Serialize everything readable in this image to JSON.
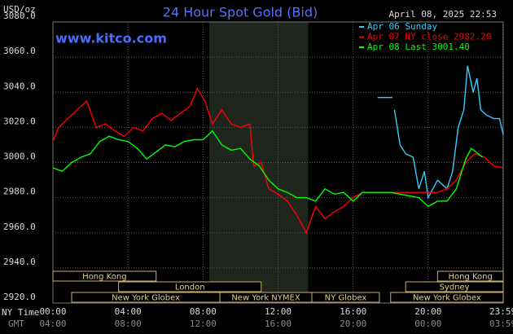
{
  "chart_data": {
    "type": "line",
    "title": "24 Hour Spot Gold (Bid)",
    "watermark": "www.kitco.com",
    "timestamp": "April 08, 2025 22:53",
    "y_label": "USD/oz",
    "x_label": "NY Time",
    "x2_label": "GMT",
    "xlim": [
      0,
      24
    ],
    "ylim": [
      2920,
      3080
    ],
    "yticks": [
      {
        "value": 2920,
        "label": "2920.0"
      },
      {
        "value": 2940,
        "label": "2940.0"
      },
      {
        "value": 2960,
        "label": "2960.0"
      },
      {
        "value": 2980,
        "label": "2980.0"
      },
      {
        "value": 3000,
        "label": "3000.0"
      },
      {
        "value": 3020,
        "label": "3020.0"
      },
      {
        "value": 3040,
        "label": "3040.0"
      },
      {
        "value": 3060,
        "label": "3060.0"
      },
      {
        "value": 3080,
        "label": "3080.0"
      }
    ],
    "xticks": [
      {
        "value": 0,
        "label": "00:00"
      },
      {
        "value": 4,
        "label": "04:00"
      },
      {
        "value": 8,
        "label": "08:00"
      },
      {
        "value": 12,
        "label": "12:00"
      },
      {
        "value": 16,
        "label": "16:00"
      },
      {
        "value": 20,
        "label": "20:00"
      },
      {
        "value": 23.98,
        "label": "23:59"
      }
    ],
    "x2ticks": [
      {
        "value": 0,
        "label": "04:00"
      },
      {
        "value": 4,
        "label": "08:00"
      },
      {
        "value": 8,
        "label": "12:00"
      },
      {
        "value": 12,
        "label": "16:00"
      },
      {
        "value": 16,
        "label": "20:00"
      },
      {
        "value": 20,
        "label": "00:00"
      },
      {
        "value": 23.98,
        "label": "03:59"
      }
    ],
    "grid": true,
    "highlight_x": [
      8.33,
      13.6
    ],
    "sessions": [
      {
        "name": "Hong Kong",
        "start": 0,
        "end": 5.5,
        "row": 0
      },
      {
        "name": "London",
        "start": 3.5,
        "end": 11.1,
        "row": 1
      },
      {
        "name": "New York Globex",
        "start": 1,
        "end": 8.9,
        "row": 2
      },
      {
        "name": "New York NYMEX",
        "start": 8.9,
        "end": 13.8,
        "row": 2
      },
      {
        "name": "NY Globex",
        "start": 13.8,
        "end": 17.4,
        "row": 2
      },
      {
        "name": "Hong Kong",
        "start": 20.5,
        "end": 24,
        "row": 0
      },
      {
        "name": "Sydney",
        "start": 18.8,
        "end": 24,
        "row": 1
      },
      {
        "name": "New York Globex",
        "start": 18,
        "end": 24,
        "row": 2
      }
    ],
    "series": [
      {
        "name": "Apr 06 Sunday",
        "color": "#33ccff",
        "x": [
          17.3,
          18.1,
          18.15,
          18.2,
          18.5,
          18.8,
          19.2,
          19.5,
          19.8,
          20.0,
          20.5,
          21.0,
          21.3,
          21.6,
          21.9,
          22.1,
          22.4,
          22.6,
          22.8,
          23.1,
          23.5,
          23.8,
          24
        ],
        "values": [
          3037,
          3037,
          null,
          3030,
          3010,
          3005,
          3003,
          2985,
          2995,
          2980,
          2990,
          2985,
          2995,
          3020,
          3030,
          3055,
          3040,
          3048,
          3030,
          3027,
          3025,
          3025,
          3016
        ]
      },
      {
        "name": "Apr 07 NY close 2982.20",
        "color": "#ff0000",
        "x": [
          0,
          0.3,
          0.8,
          1.3,
          1.8,
          2.3,
          2.8,
          3.3,
          3.8,
          4.3,
          4.8,
          5.3,
          5.8,
          6.3,
          6.8,
          7.3,
          7.7,
          8.1,
          8.5,
          9.0,
          9.5,
          10.0,
          10.5,
          10.7,
          11.1,
          11.5,
          12.0,
          12.5,
          13.0,
          13.5,
          14.0,
          14.5,
          15.0,
          15.5,
          16.0,
          16.5,
          17.0,
          18.0,
          19.0,
          20.0,
          20.5,
          21.0,
          21.5,
          22.0,
          22.5,
          23.0,
          23.5,
          24
        ],
        "values": [
          3012,
          3020,
          3025,
          3030,
          3035,
          3020,
          3022,
          3018,
          3015,
          3020,
          3018,
          3025,
          3028,
          3024,
          3028,
          3032,
          3042,
          3035,
          3022,
          3030,
          3022,
          3020,
          3022,
          2998,
          3000,
          2985,
          2982,
          2978,
          2970,
          2960,
          2975,
          2968,
          2972,
          2975,
          2980,
          2983,
          2983,
          2983,
          2983,
          2983,
          2983,
          2985,
          2990,
          3000,
          3005,
          3003,
          2998,
          2997
        ]
      },
      {
        "name": "Apr 08 Last 3001.40",
        "color": "#00ff00",
        "x": [
          0,
          0.5,
          1.0,
          1.5,
          2.0,
          2.5,
          3.0,
          3.5,
          4.0,
          4.5,
          5.0,
          5.5,
          6.0,
          6.5,
          7.0,
          7.5,
          8.0,
          8.5,
          9.0,
          9.5,
          10.0,
          10.5,
          11.0,
          11.5,
          12.0,
          12.5,
          13.0,
          13.5,
          14.0,
          14.5,
          15.0,
          15.5,
          16.0,
          16.5,
          17.0,
          18.0,
          19.0,
          19.5,
          20.0,
          20.5,
          21.0,
          21.5,
          22.0,
          22.3,
          22.9
        ],
        "values": [
          2997,
          2995,
          3000,
          3003,
          3005,
          3012,
          3015,
          3013,
          3012,
          3008,
          3002,
          3006,
          3010,
          3009,
          3012,
          3013,
          3013,
          3018,
          3010,
          3007,
          3008,
          3002,
          2998,
          2990,
          2985,
          2983,
          2980,
          2980,
          2978,
          2985,
          2982,
          2983,
          2978,
          2983,
          2983,
          2983,
          2981,
          2980,
          2975,
          2978,
          2978,
          2985,
          3002,
          3008,
          3003
        ]
      }
    ]
  }
}
